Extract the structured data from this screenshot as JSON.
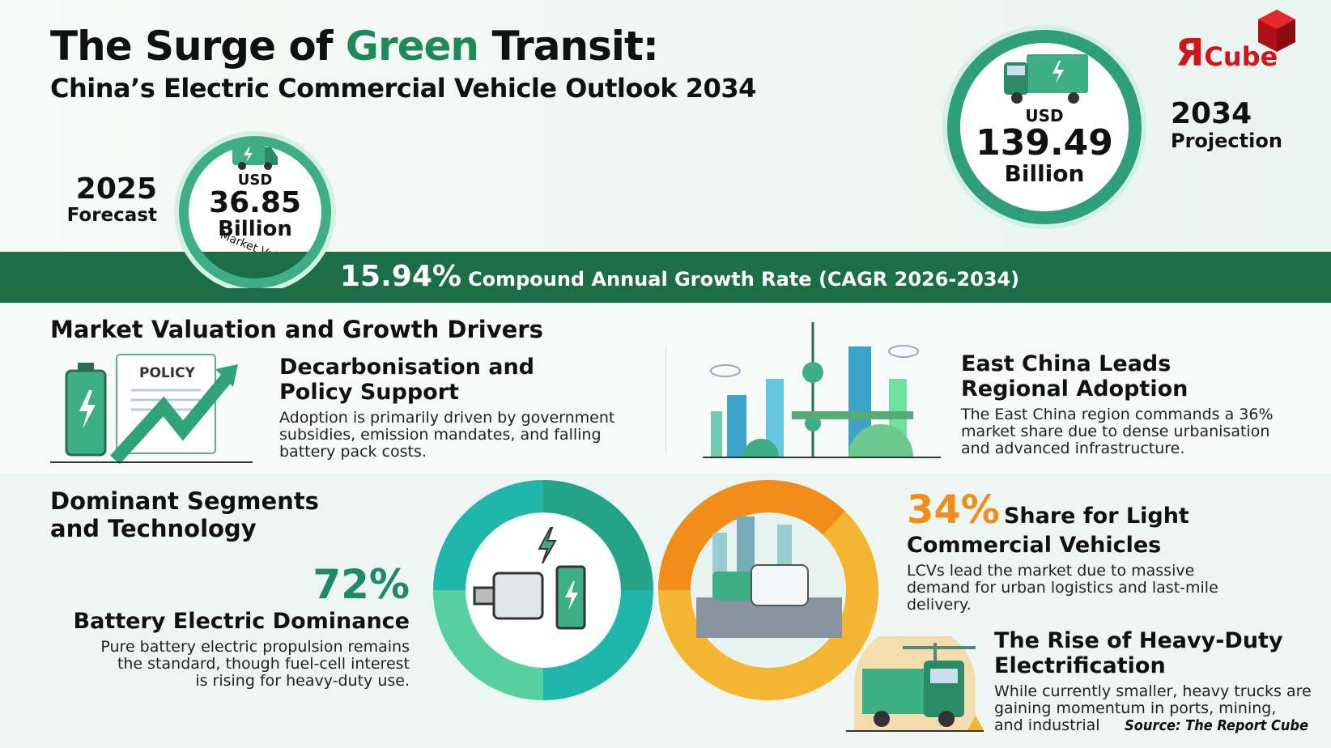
{
  "header": {
    "title_part1": "The Surge of ",
    "title_green": "Green",
    "title_part2": " Transit:",
    "subtitle": "China’s Electric Commercial Vehicle Outlook 2034"
  },
  "logo": {
    "text_r": "Я",
    "text_cube": "Cube",
    "color": "#d0161b"
  },
  "forecast_2025": {
    "year": "2025",
    "label": "Forecast",
    "currency": "USD",
    "value": "36.85",
    "unit": "Billion",
    "caption": "Market Value"
  },
  "projection_2034": {
    "year": "2034",
    "label": "Projection",
    "currency": "USD",
    "value": "139.49",
    "unit": "Billion"
  },
  "cagr": {
    "value": "15.94%",
    "text": "Compound Annual Growth Rate (CAGR 2026-2034)"
  },
  "drivers": {
    "heading": "Market Valuation and Growth Drivers",
    "policy_icon_label": "POLICY",
    "left": {
      "title_l1": "Decarbonisation and",
      "title_l2": "Policy Support",
      "body_l1": "Adoption is primarily driven by government",
      "body_l2": "subsidies, emission mandates, and falling",
      "body_l3": "battery pack costs."
    },
    "right": {
      "title_l1": "East China Leads",
      "title_l2": "Regional Adoption",
      "body_l1": "The East China region commands a 36%",
      "body_l2": "market share due to dense urbanisation",
      "body_l3": "and advanced infrastructure."
    }
  },
  "segments": {
    "heading_l1": "Dominant Segments",
    "heading_l2": "and Technology",
    "bev": {
      "value": "72%",
      "title": "Battery Electric Dominance",
      "body_l1": "Pure battery electric propulsion remains",
      "body_l2": "the standard, though fuel-cell interest",
      "body_l3": "is rising for heavy-duty use."
    },
    "lcv": {
      "value": "34%",
      "title_l1": "Share for Light",
      "title_l2": "Commercial Vehicles",
      "body_l1": "LCVs lead the market due to massive",
      "body_l2": "demand for urban logistics and last-mile",
      "body_l3": "delivery."
    },
    "heavy": {
      "title_l1": "The Rise of Heavy-Duty",
      "title_l2": "Electrification",
      "body_l1": "While currently smaller, heavy trucks are",
      "body_l2": "gaining momentum in ports, mining,",
      "body_l3": "and industrial"
    }
  },
  "source": "Source: The Report Cube",
  "colors": {
    "green_dark": "#1b6e45",
    "green": "#1e8a5a",
    "teal": "#1fb5a8",
    "orange": "#f28c1a",
    "yellow": "#f4b632"
  }
}
